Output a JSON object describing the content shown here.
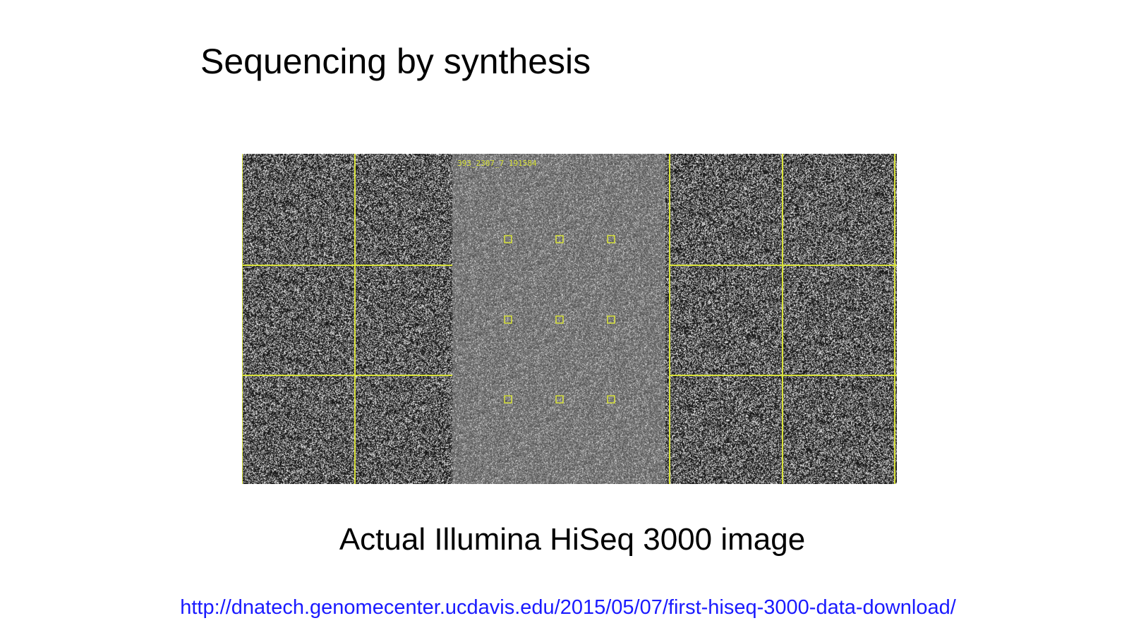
{
  "slide": {
    "title": "Sequencing by synthesis",
    "caption": "Actual Illumina HiSeq 3000 image",
    "source_url": "http://dnatech.genomecenter.ucdavis.edu/2015/05/07/first-hiseq-3000-data-download/"
  },
  "figure": {
    "overlay_label": "393_2307_7 191584",
    "grid_color": "#d8e23a",
    "marker_color": "#d8e23a"
  },
  "colors": {
    "title": "#000000",
    "link": "#1a1aff",
    "background": "#ffffff"
  }
}
